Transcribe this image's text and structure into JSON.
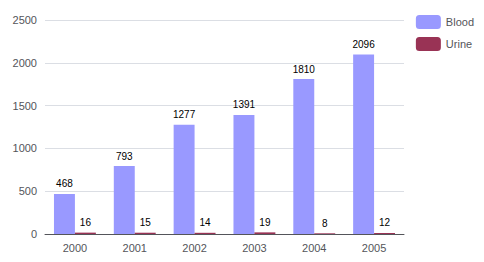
{
  "chart_data": {
    "type": "bar",
    "categories": [
      "2000",
      "2001",
      "2002",
      "2003",
      "2004",
      "2005"
    ],
    "series": [
      {
        "name": "Blood",
        "color": "#9999ff",
        "values": [
          468,
          793,
          1277,
          1391,
          1810,
          2096
        ]
      },
      {
        "name": "Urine",
        "color": "#993355",
        "values": [
          16,
          15,
          14,
          19,
          8,
          12
        ]
      }
    ],
    "ylim": [
      0,
      2500
    ],
    "yticks": [
      0,
      500,
      1000,
      1500,
      2000,
      2500
    ],
    "grid": true,
    "legend": "upper right",
    "data_labels": true
  }
}
